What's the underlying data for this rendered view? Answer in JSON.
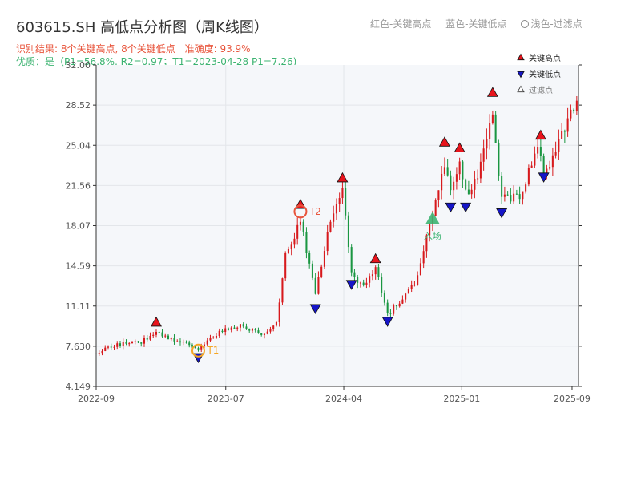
{
  "header": {
    "title": "603615.SH 高低点分析图（周K线图）",
    "result_text": "识别结果: 8个关键高点, 8个关键低点",
    "accuracy_text": "准确度: 93.9%",
    "quality_text": "优质：是（P1=56.8%, R2=0.97；T1=2023-04-28 P1=7.26)"
  },
  "top_legend": {
    "red": "红色-关键高点",
    "blue": "蓝色-关键低点",
    "light": "浅色-过滤点"
  },
  "colors": {
    "up": "#d7191c",
    "down": "#1a9641",
    "high": "#e8141c",
    "low": "#1515c8",
    "t1": "#f5a623",
    "t2": "#e8553c",
    "entry": "#3cb371",
    "plot_bg": "#f5f7fa",
    "grid": "#e3e6ea"
  },
  "chart_data": {
    "type": "candlestick",
    "title": "603615.SH 高低点分析图（周K线图）",
    "y_ticks": [
      "4.149",
      "7.630",
      "11.11",
      "14.59",
      "18.07",
      "21.56",
      "25.04",
      "28.52",
      "32.00"
    ],
    "x_ticks": [
      "2022-09",
      "2023-07",
      "2024-04",
      "2025-01",
      "2025-09"
    ],
    "ylim": [
      4.149,
      32.0
    ],
    "xlim": [
      "2022-09-02",
      "2025-09-30"
    ],
    "grid": true,
    "legend": {
      "position": "top-right",
      "items": [
        {
          "label": "关键高点",
          "marker": "up-triangle",
          "color": "#e8141c"
        },
        {
          "label": "关键低点",
          "marker": "down-triangle",
          "color": "#1515c8"
        },
        {
          "label": "过滤点",
          "marker": "hollow-triangle",
          "color": "#333333"
        }
      ]
    },
    "anchors": [
      {
        "date": "2022-09-02",
        "price": 7.0
      },
      {
        "date": "2022-10-21",
        "price": 7.8
      },
      {
        "date": "2022-12-16",
        "price": 8.0
      },
      {
        "date": "2023-01-20",
        "price": 8.9
      },
      {
        "date": "2023-02-24",
        "price": 8.2
      },
      {
        "date": "2023-04-28",
        "price": 7.5
      },
      {
        "date": "2023-06-16",
        "price": 8.9
      },
      {
        "date": "2023-08-04",
        "price": 9.4
      },
      {
        "date": "2023-09-29",
        "price": 8.5
      },
      {
        "date": "2023-10-27",
        "price": 9.6
      },
      {
        "date": "2023-11-17",
        "price": 15.4
      },
      {
        "date": "2023-12-22",
        "price": 18.6
      },
      {
        "date": "2024-01-26",
        "price": 12.2
      },
      {
        "date": "2024-02-23",
        "price": 17.2
      },
      {
        "date": "2024-03-29",
        "price": 21.3
      },
      {
        "date": "2024-04-19",
        "price": 13.8
      },
      {
        "date": "2024-05-17",
        "price": 13.0
      },
      {
        "date": "2024-06-14",
        "price": 14.5
      },
      {
        "date": "2024-07-12",
        "price": 10.3
      },
      {
        "date": "2024-09-20",
        "price": 13.5
      },
      {
        "date": "2024-10-25",
        "price": 19.2
      },
      {
        "date": "2024-11-22",
        "price": 23.4
      },
      {
        "date": "2024-12-06",
        "price": 21.0
      },
      {
        "date": "2024-12-27",
        "price": 23.6
      },
      {
        "date": "2025-01-10",
        "price": 20.8
      },
      {
        "date": "2025-02-07",
        "price": 22.3
      },
      {
        "date": "2025-03-14",
        "price": 27.8
      },
      {
        "date": "2025-04-04",
        "price": 20.3
      },
      {
        "date": "2025-05-16",
        "price": 20.6
      },
      {
        "date": "2025-06-27",
        "price": 25.0
      },
      {
        "date": "2025-07-11",
        "price": 22.3
      },
      {
        "date": "2025-09-26",
        "price": 29.2
      }
    ],
    "key_highs": [
      {
        "date": "2023-01-20",
        "price": 9.1
      },
      {
        "date": "2023-12-22",
        "price": 19.3
      },
      {
        "date": "2024-03-29",
        "price": 21.6
      },
      {
        "date": "2024-06-14",
        "price": 14.6
      },
      {
        "date": "2024-11-22",
        "price": 24.7
      },
      {
        "date": "2024-12-27",
        "price": 24.2
      },
      {
        "date": "2025-03-14",
        "price": 29.0
      },
      {
        "date": "2025-07-04",
        "price": 25.3
      }
    ],
    "key_lows": [
      {
        "date": "2023-04-28",
        "price": 7.26
      },
      {
        "date": "2024-01-26",
        "price": 11.5
      },
      {
        "date": "2024-04-19",
        "price": 13.6
      },
      {
        "date": "2024-07-12",
        "price": 10.4
      },
      {
        "date": "2024-12-06",
        "price": 20.3
      },
      {
        "date": "2025-01-10",
        "price": 20.3
      },
      {
        "date": "2025-04-04",
        "price": 19.8
      },
      {
        "date": "2025-07-11",
        "price": 22.9
      }
    ],
    "t1": {
      "label": "T1",
      "date": "2023-04-28",
      "price": 7.26
    },
    "t2": {
      "label": "T2",
      "date": "2023-12-22",
      "price": 19.3
    },
    "entry": {
      "label": "入场",
      "date": "2024-10-25",
      "price": 18.6
    }
  }
}
